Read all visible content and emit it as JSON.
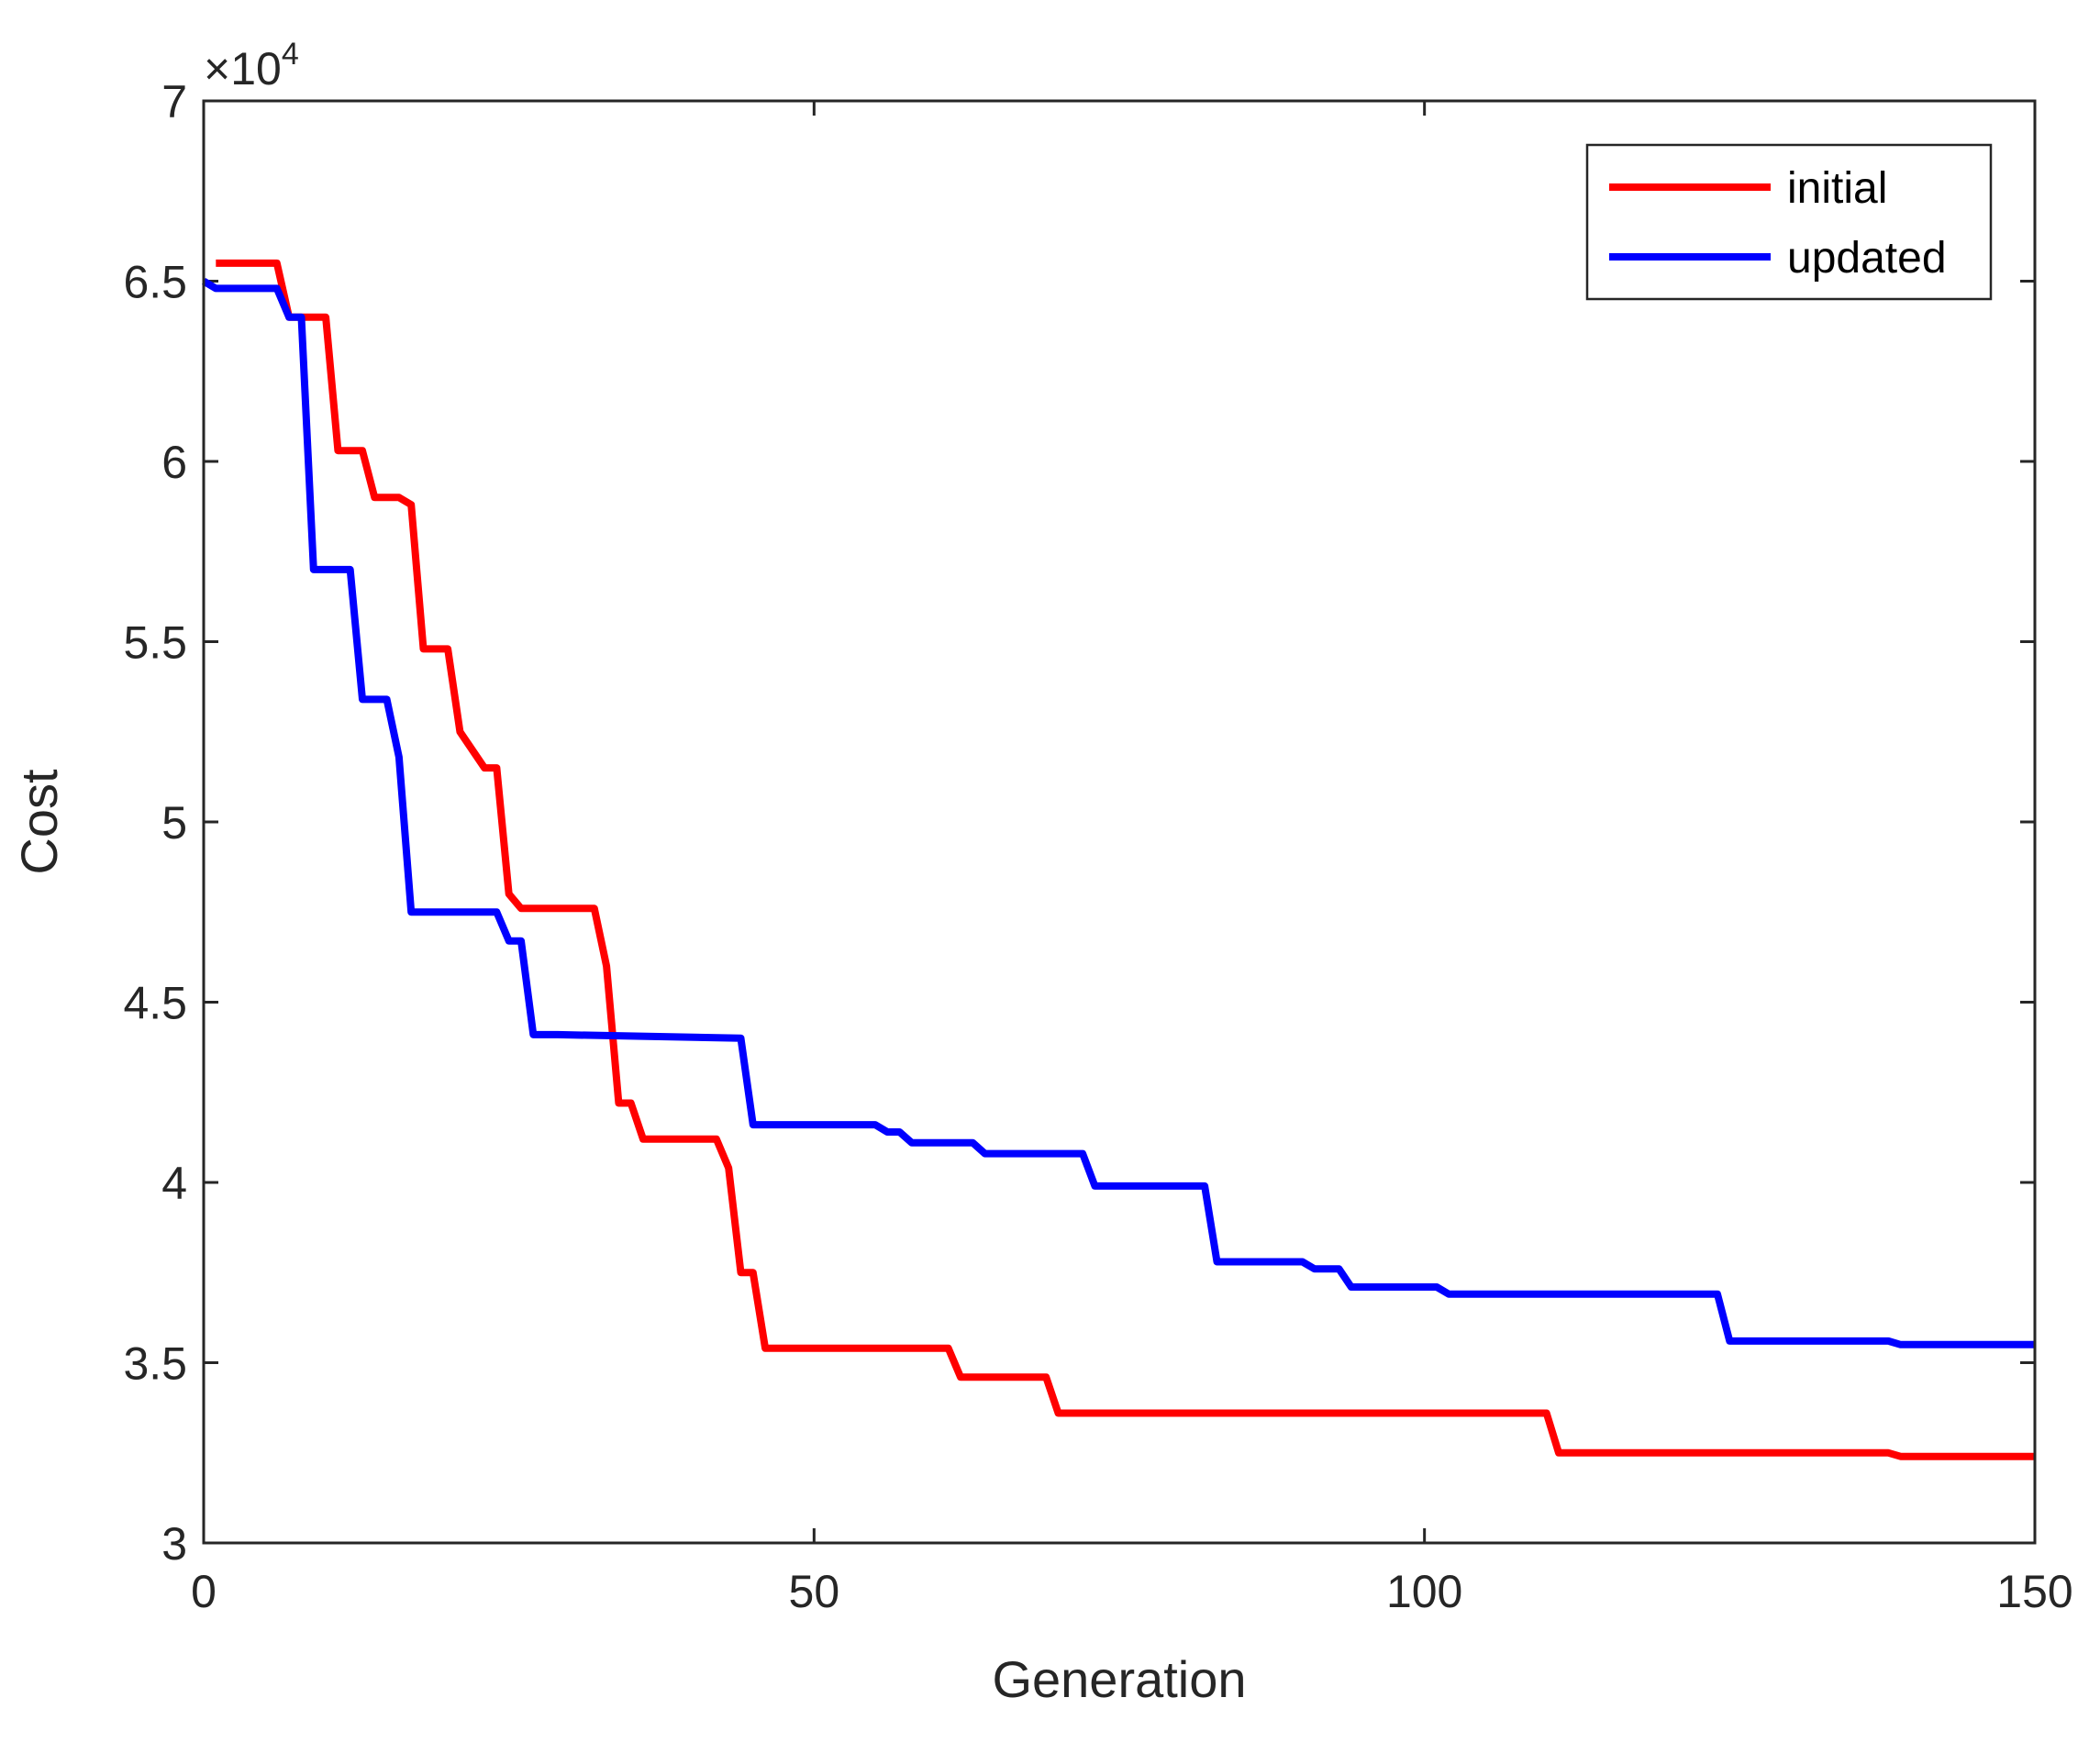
{
  "chart_data": {
    "type": "line",
    "title": "",
    "xlabel": "Generation",
    "ylabel": "Cost",
    "xlim": [
      0,
      150
    ],
    "ylim": [
      30000,
      70000
    ],
    "y_exponent_label": {
      "base": "×10",
      "power": "4"
    },
    "xticks": [
      0,
      50,
      100,
      150
    ],
    "xtick_labels": [
      "0",
      "50",
      "100",
      "150"
    ],
    "yticks": [
      30000,
      35000,
      40000,
      45000,
      50000,
      55000,
      60000,
      65000,
      70000
    ],
    "ytick_labels": [
      "3",
      "3.5",
      "4",
      "4.5",
      "5",
      "5.5",
      "6",
      "6.5",
      "7"
    ],
    "grid": false,
    "legend_position": "top-right",
    "series": [
      {
        "name": "initial",
        "color": "#ff0000",
        "x": [
          1,
          6,
          7,
          10,
          11,
          12,
          13,
          14,
          15,
          16,
          17,
          18,
          19,
          20,
          21,
          22,
          23,
          24,
          25,
          26,
          27,
          28,
          29,
          32,
          33,
          34,
          35,
          36,
          37,
          38,
          42,
          43,
          44,
          45,
          46,
          47,
          61,
          62,
          69,
          70,
          110,
          111,
          138,
          139,
          150
        ],
        "y": [
          65500,
          65500,
          64000,
          64000,
          60300,
          60300,
          60300,
          59000,
          59000,
          59000,
          58800,
          54800,
          54800,
          54800,
          52500,
          52000,
          51500,
          51500,
          48000,
          47600,
          47600,
          47600,
          47600,
          47600,
          46000,
          42200,
          42200,
          41200,
          41200,
          41200,
          41200,
          40400,
          37500,
          37500,
          35400,
          35400,
          35400,
          34600,
          34600,
          33600,
          33600,
          32500,
          32500,
          32400,
          32400
        ]
      },
      {
        "name": "updated",
        "color": "#0000ff",
        "x": [
          0,
          1,
          6,
          7,
          8,
          9,
          12,
          13,
          15,
          16,
          17,
          18,
          24,
          25,
          26,
          27,
          28,
          29,
          44,
          45,
          46,
          55,
          56,
          57,
          58,
          59,
          63,
          64,
          72,
          73,
          82,
          83,
          90,
          91,
          93,
          94,
          101,
          102,
          124,
          125,
          126,
          138,
          139,
          140,
          150
        ],
        "y": [
          65000,
          64800,
          64800,
          64000,
          64000,
          57000,
          57000,
          53400,
          53400,
          51800,
          47500,
          47500,
          47500,
          46700,
          46700,
          44100,
          44100,
          44100,
          44000,
          41600,
          41600,
          41600,
          41400,
          41400,
          41100,
          41100,
          41100,
          40800,
          40800,
          39900,
          39900,
          37800,
          37800,
          37600,
          37600,
          37100,
          37100,
          36900,
          36900,
          35600,
          35600,
          35600,
          35500,
          35500,
          35500
        ]
      }
    ]
  }
}
